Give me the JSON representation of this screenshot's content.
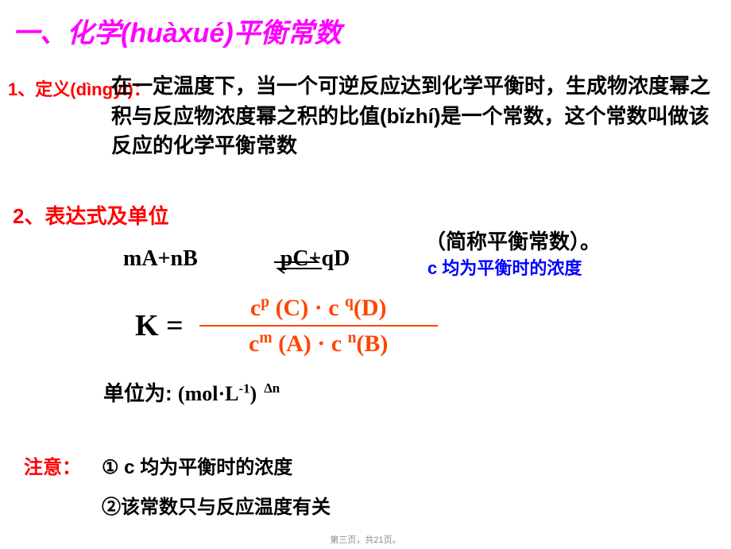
{
  "colors": {
    "magenta": "#ff00ff",
    "red": "#ff0000",
    "blue": "#0000ff",
    "black": "#000000",
    "orangered": "#ff4500",
    "footer": "#888888",
    "background": "#ffffff"
  },
  "title": {
    "prefix": "一、化学",
    "pinyin": "(huàxué)",
    "suffix": "平衡常数"
  },
  "section1": {
    "label_prefix": "1、定义",
    "label_pinyin": "(dìngyì)",
    "label_suffix": "：",
    "text_a": "在一定温度下，当一个可逆反应达到化学平衡时，生成物浓度幂之积与反应物浓度幂之积的比值",
    "text_pinyin": "(bǐzhí)",
    "text_b": "是一个常数，这个常数叫做该反应的化学平衡常数"
  },
  "section2": {
    "label": "2、表达式及单位",
    "abbr": "（简称平衡常数）。",
    "cnote": "c 均为平衡时的浓度",
    "reaction_left": "mA+nB",
    "reaction_right": "pC+qD",
    "k_label": "K =",
    "numerator": "c<sup>p</sup> (C) · c <sup>q</sup>(D)",
    "denominator": "c<sup>m</sup> (A) · c <sup>n</sup>(B)",
    "unit_label": "单位为:",
    "unit_value": "(mol·L<sup>-1</sup>)",
    "unit_exp": "∆n"
  },
  "notes": {
    "label": "注意：",
    "n1": "①  c 均为平衡时的浓度",
    "n2": "②该常数只与反应温度有关"
  },
  "footer": "第三页，共21页。"
}
